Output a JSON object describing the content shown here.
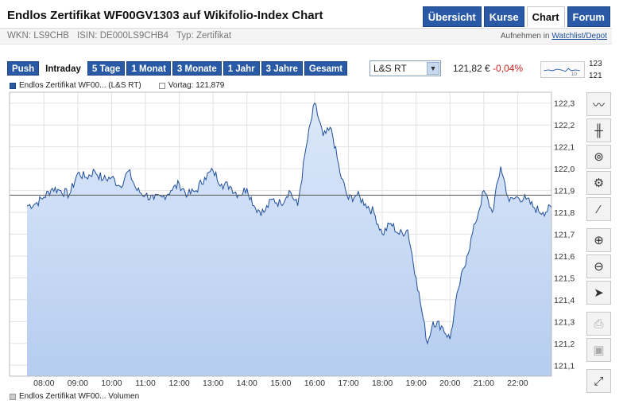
{
  "header": {
    "title": "Endlos Zertifikat WF00GV1303 auf Wikifolio-Index Chart",
    "tabs": [
      {
        "label": "Übersicht",
        "active": false
      },
      {
        "label": "Kurse",
        "active": false
      },
      {
        "label": "Chart",
        "active": true
      },
      {
        "label": "Forum",
        "active": false
      }
    ],
    "wkn": "WKN: LS9CHB",
    "isin": "ISIN: DE000LS9CHB4",
    "typ": "Typ: Zertifikat",
    "add_prefix": "Aufnehmen in",
    "add_link": "Watchlist/Depot"
  },
  "controls": {
    "ranges": [
      {
        "label": "Push",
        "active": false
      },
      {
        "label": "Intraday",
        "active": true
      },
      {
        "label": "5 Tage",
        "active": false
      },
      {
        "label": "1 Monat",
        "active": false
      },
      {
        "label": "3 Monate",
        "active": false
      },
      {
        "label": "1 Jahr",
        "active": false
      },
      {
        "label": "3 Jahre",
        "active": false
      },
      {
        "label": "Gesamt",
        "active": false
      }
    ],
    "exchange": "L&S RT",
    "price": "121,82 €",
    "change": "-0,04%",
    "spark_high": "123",
    "spark_low": "121",
    "spark_mark": "10"
  },
  "legend": {
    "series": "Endlos Zertifikat WF00... (L&S RT)",
    "prev": "Vortag: 121,879",
    "volume": "Endlos Zertifikat WF00... Volumen"
  },
  "tools": [
    {
      "icon": "line-chart-icon",
      "glyph": "〰"
    },
    {
      "icon": "ohlc-chart-icon",
      "glyph": "╫"
    },
    {
      "icon": "indicator-search-icon",
      "glyph": "⊚"
    },
    {
      "icon": "settings-icon",
      "glyph": "⚙"
    },
    {
      "icon": "draw-line-icon",
      "glyph": "⁄"
    },
    {
      "icon": "zoom-in-icon",
      "glyph": "⊕"
    },
    {
      "icon": "zoom-out-icon",
      "glyph": "⊖"
    },
    {
      "icon": "cursor-icon",
      "glyph": "➤"
    },
    {
      "icon": "print-icon",
      "glyph": "⎙"
    },
    {
      "icon": "save-icon",
      "glyph": "▣"
    },
    {
      "icon": "fullscreen-icon",
      "glyph": "⤢"
    }
  ],
  "colors": {
    "line": "#1f4f9a",
    "area_top": "#dce8f9",
    "area_bottom": "#b6cdf0",
    "accent": "#2a5aa6",
    "negative": "#cc2222"
  },
  "chart_data": {
    "type": "area",
    "y_ticks": [
      "122,3",
      "122,2",
      "122,1",
      "122,0",
      "121,9",
      "121,8",
      "121,7",
      "121,6",
      "121,5",
      "121,4",
      "121,3",
      "121,2",
      "121,1"
    ],
    "x_ticks": [
      "08:00",
      "09:00",
      "10:00",
      "11:00",
      "12:00",
      "13:00",
      "14:00",
      "15:00",
      "16:00",
      "17:00",
      "18:00",
      "19:00",
      "20:00",
      "21:00",
      "22:00"
    ],
    "ylim": [
      121.05,
      122.35
    ],
    "xlim": [
      "07:30",
      "23:00"
    ],
    "reference_line": 121.879,
    "series": [
      {
        "name": "Endlos Zertifikat WF00... (L&S RT)",
        "x": [
          "07:30",
          "07:45",
          "08:00",
          "08:15",
          "08:30",
          "08:45",
          "09:00",
          "09:15",
          "09:30",
          "09:45",
          "10:00",
          "10:15",
          "10:30",
          "10:45",
          "11:00",
          "11:15",
          "11:30",
          "11:45",
          "12:00",
          "12:15",
          "12:30",
          "12:45",
          "13:00",
          "13:15",
          "13:30",
          "13:45",
          "14:00",
          "14:15",
          "14:30",
          "14:45",
          "15:00",
          "15:15",
          "15:30",
          "15:45",
          "16:00",
          "16:15",
          "16:30",
          "16:45",
          "17:00",
          "17:15",
          "17:30",
          "17:45",
          "18:00",
          "18:15",
          "18:30",
          "18:45",
          "19:00",
          "19:10",
          "19:20",
          "19:30",
          "19:45",
          "20:00",
          "20:15",
          "20:30",
          "20:45",
          "21:00",
          "21:15",
          "21:30",
          "21:45",
          "22:00",
          "22:15",
          "22:30",
          "22:45",
          "23:00"
        ],
        "values": [
          121.83,
          121.84,
          121.87,
          121.91,
          121.9,
          121.88,
          121.98,
          121.96,
          121.99,
          121.95,
          121.96,
          121.92,
          121.99,
          121.9,
          121.88,
          121.86,
          121.87,
          121.9,
          121.93,
          121.88,
          121.9,
          121.96,
          121.99,
          121.93,
          121.92,
          121.88,
          121.91,
          121.82,
          121.8,
          121.86,
          121.84,
          121.9,
          121.83,
          122.1,
          122.3,
          122.15,
          122.18,
          121.98,
          121.86,
          121.88,
          121.84,
          121.8,
          121.7,
          121.75,
          121.7,
          121.72,
          121.5,
          121.35,
          121.2,
          121.3,
          121.28,
          121.22,
          121.45,
          121.6,
          121.75,
          121.9,
          121.8,
          122.01,
          121.85,
          121.87,
          121.86,
          121.82,
          121.8,
          121.82
        ]
      }
    ]
  }
}
